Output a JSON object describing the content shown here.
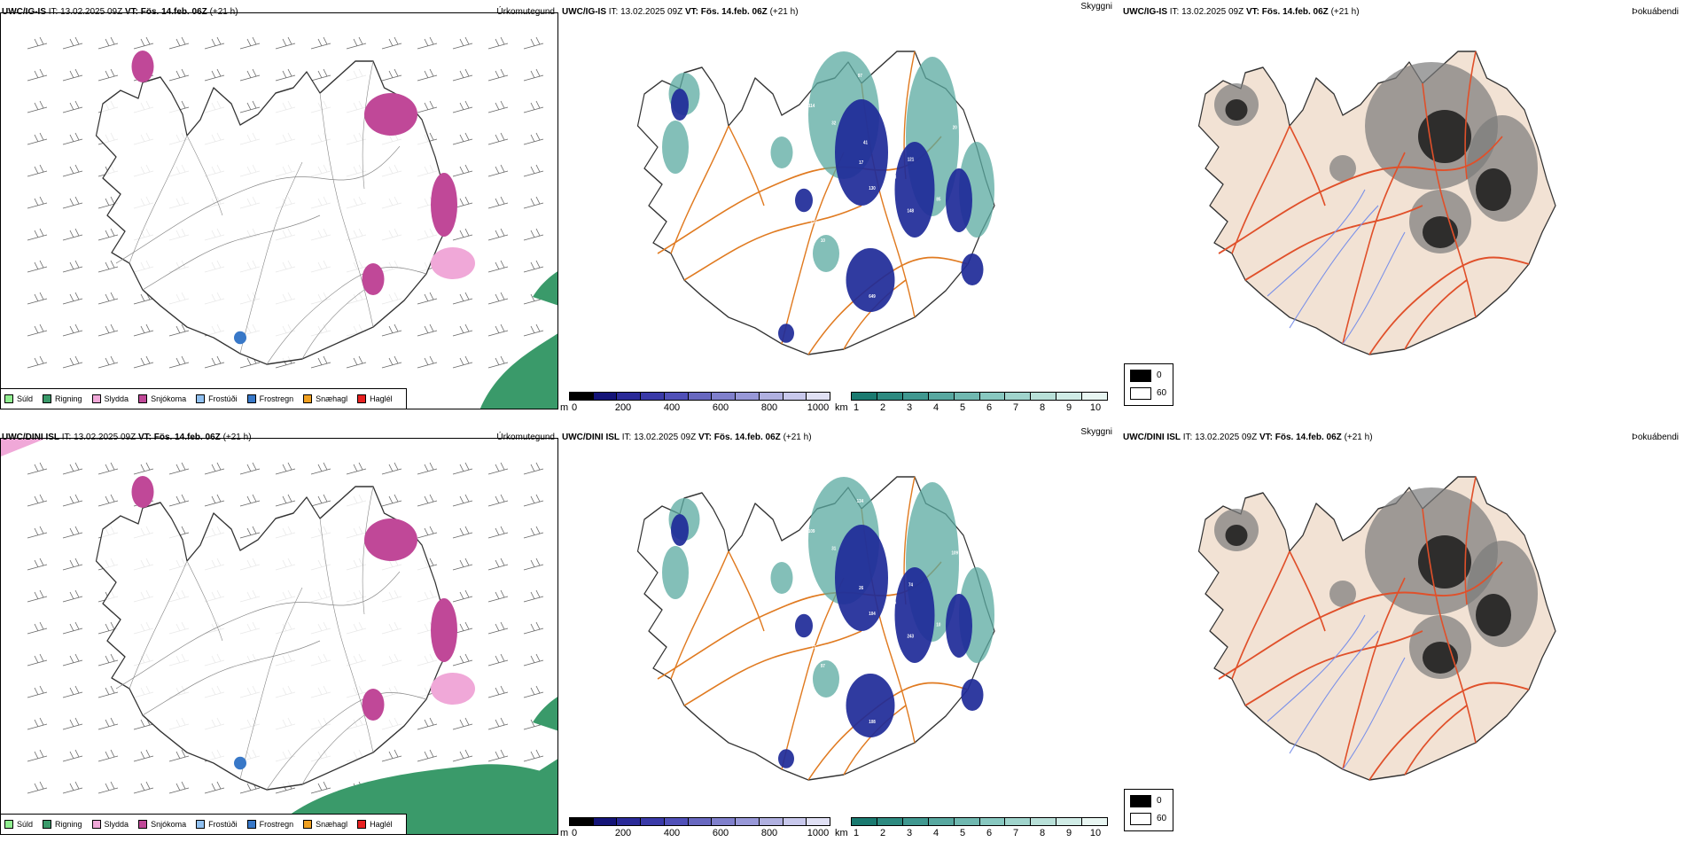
{
  "rows": [
    {
      "precip": {
        "model": "UWC/IG-IS",
        "it_label": "IT:",
        "it_value": "13.02.2025 09Z",
        "vt_label": "VT:",
        "vt_value": "Fös. 14.feb. 06Z",
        "lead": "(+21 h)",
        "name": "Úrkomutegund"
      },
      "cloud": {
        "model": "UWC/IG-IS",
        "it_label": "IT:",
        "it_value": "13.02.2025 09Z",
        "vt_label": "VT:",
        "vt_value": "Fös. 14.feb. 06Z",
        "lead": "(+21 h)",
        "name": "Skyggni",
        "values": [
          "130",
          "133",
          "32",
          "11",
          "11",
          "20",
          "110",
          "17",
          "148",
          "18",
          "200",
          "649",
          "132",
          "58",
          "115",
          "114",
          "26",
          "92",
          "17",
          "10",
          "108",
          "85",
          "133",
          "97",
          "14",
          "10",
          "121",
          "105",
          "19",
          "129",
          "70",
          "41"
        ]
      },
      "cover": {
        "model": "UWC/IG-IS",
        "it_label": "IT:",
        "it_value": "13.02.2025 09Z",
        "vt_label": "VT:",
        "vt_value": "Fös. 14.feb. 06Z",
        "lead": "(+21 h)",
        "name": "Þokuábendi"
      }
    },
    {
      "precip": {
        "model": "UWC/DINI ISL",
        "it_label": "IT:",
        "it_value": "13.02.2025 09Z",
        "vt_label": "VT:",
        "vt_value": "Fös. 14.feb. 06Z",
        "lead": "(+21 h)",
        "name": "Úrkomutegund"
      },
      "cloud": {
        "model": "UWC/DINI ISL",
        "it_label": "IT:",
        "it_value": "13.02.2025 09Z",
        "vt_label": "VT:",
        "vt_value": "Fös. 14.feb. 06Z",
        "lead": "(+21 h)",
        "name": "Skyggni",
        "values": [
          "104",
          "93",
          "31",
          "92",
          "14",
          "109",
          "17",
          "17",
          "243",
          "169",
          "91",
          "108",
          "96",
          "46",
          "86",
          "109",
          "74",
          "106",
          "26",
          "97",
          "90",
          "10",
          "120",
          "134",
          "125",
          "138",
          "74",
          "16",
          "63",
          "38"
        ]
      },
      "cover": {
        "model": "UWC/DINI ISL",
        "it_label": "IT:",
        "it_value": "13.02.2025 09Z",
        "vt_label": "VT:",
        "vt_value": "Fös. 14.feb. 06Z",
        "lead": "(+21 h)",
        "name": "Þokuábendi"
      }
    }
  ],
  "precip_legend": [
    {
      "label": "Súld",
      "color": "#90ee90"
    },
    {
      "label": "Rigning",
      "color": "#3a9a6a"
    },
    {
      "label": "Slydda",
      "color": "#f0a8d8"
    },
    {
      "label": "Snjókoma",
      "color": "#c04898"
    },
    {
      "label": "Frostúði",
      "color": "#90c0f0"
    },
    {
      "label": "Frostregn",
      "color": "#3878c8"
    },
    {
      "label": "Snæhagl",
      "color": "#f0a020"
    },
    {
      "label": "Haglél",
      "color": "#e82020"
    }
  ],
  "height_bar": {
    "unit": "m",
    "labels": [
      "0",
      "200",
      "400",
      "600",
      "800",
      "1000"
    ],
    "colors": [
      "#000000",
      "#141478",
      "#2a2a98",
      "#3a3aa8",
      "#5050b8",
      "#6868c0",
      "#8080cc",
      "#9898d8",
      "#b0b0e0",
      "#c8c8ec",
      "#e0e0f4"
    ]
  },
  "km_bar": {
    "unit": "km",
    "labels": [
      "1",
      "2",
      "3",
      "4",
      "5",
      "6",
      "7",
      "8",
      "9",
      "10"
    ],
    "colors": [
      "#1a7a70",
      "#2d8a80",
      "#409890",
      "#58a8a0",
      "#70b8b0",
      "#88c8c0",
      "#a0d4cc",
      "#b8e0d8",
      "#d0ece6",
      "#e8f6f2"
    ]
  },
  "cover_bar": {
    "labels": [
      "0",
      "60"
    ],
    "colors": [
      "#000000",
      "#ffffff"
    ]
  },
  "colors": {
    "coast": "#333333",
    "road": "#e07a20",
    "road_red": "#e0502a",
    "land_cover": "#f2e2d4",
    "river": "#7a90e8",
    "low_cloud": "#1e2a98",
    "teal": "#5aaaa0"
  }
}
